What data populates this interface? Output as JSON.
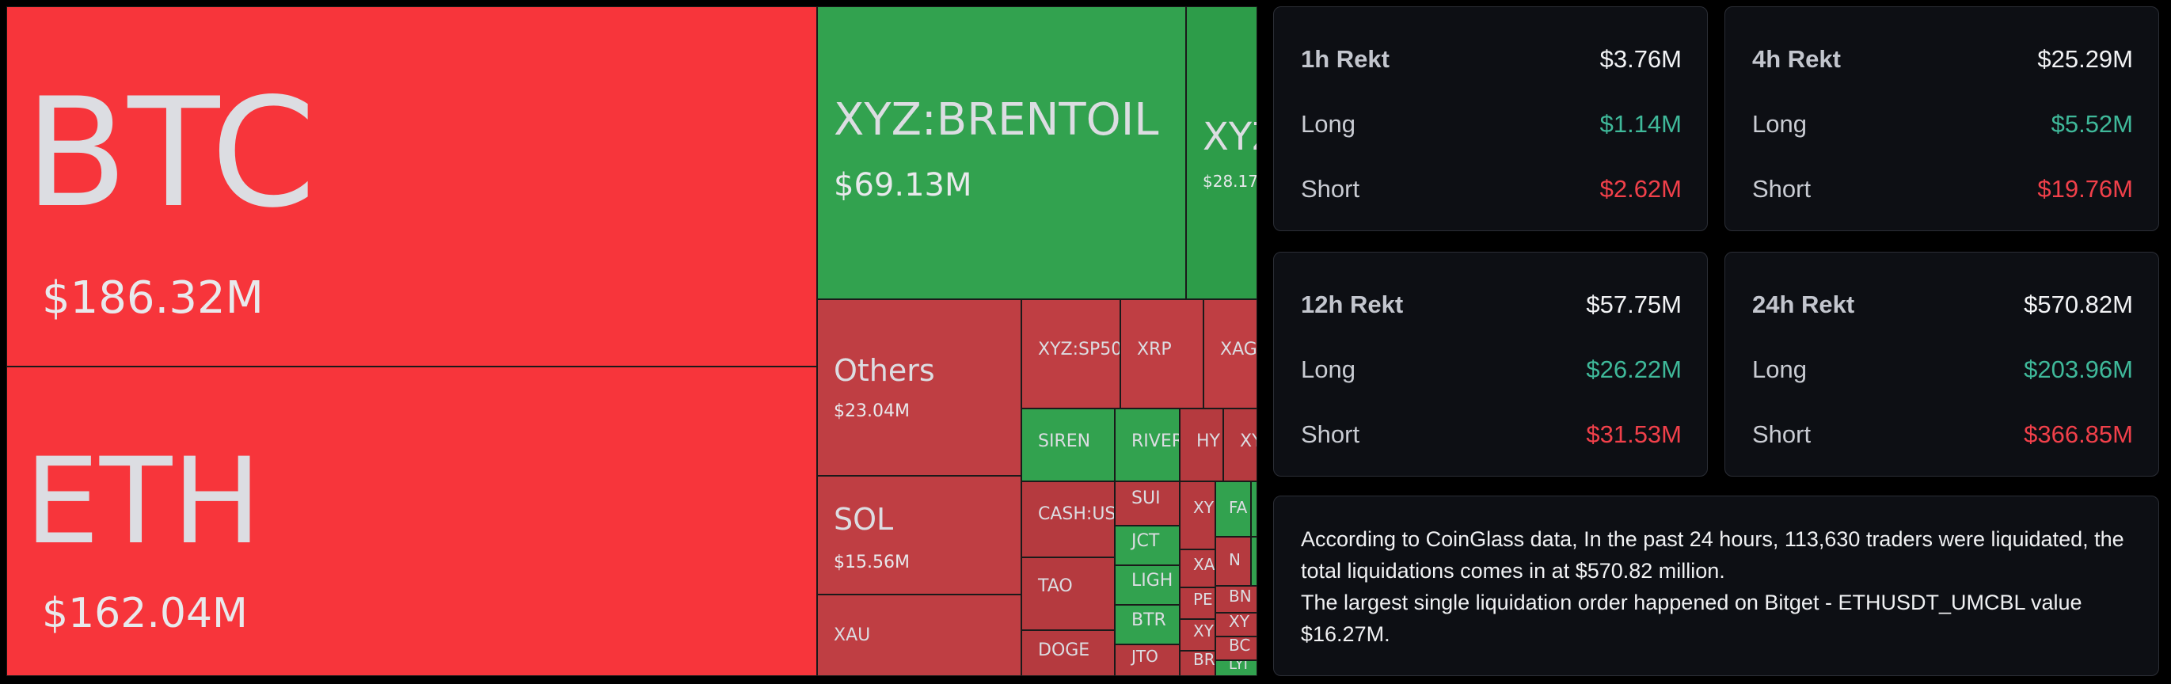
{
  "treemap": {
    "tiles": [
      {
        "symbol": "BTC",
        "value": "$186.32M",
        "color": "red1"
      },
      {
        "symbol": "ETH",
        "value": "$162.04M",
        "color": "red1"
      },
      {
        "symbol": "XYZ:BRENTOIL",
        "value": "$69.13M",
        "color": "grn"
      },
      {
        "symbol": "XYZ",
        "value": "$28.17",
        "color": "grn2"
      },
      {
        "symbol": "Others",
        "value": "$23.04M",
        "color": "red2"
      },
      {
        "symbol": "SOL",
        "value": "$15.56M",
        "color": "red2"
      },
      {
        "symbol": "XAU",
        "value": "",
        "color": "red2"
      },
      {
        "symbol": "XYZ:SP50",
        "value": "",
        "color": "red2"
      },
      {
        "symbol": "XRP",
        "value": "",
        "color": "red2"
      },
      {
        "symbol": "XAG",
        "value": "",
        "color": "red2"
      },
      {
        "symbol": "SIREN",
        "value": "",
        "color": "grn"
      },
      {
        "symbol": "RIVER",
        "value": "",
        "color": "grn"
      },
      {
        "symbol": "HY",
        "value": "",
        "color": "red3"
      },
      {
        "symbol": "XY",
        "value": "",
        "color": "red3"
      },
      {
        "symbol": "CASH:US",
        "value": "",
        "color": "red3"
      },
      {
        "symbol": "SUI",
        "value": "",
        "color": "red3"
      },
      {
        "symbol": "XY",
        "value": "",
        "color": "red3"
      },
      {
        "symbol": "FA",
        "value": "",
        "color": "grn"
      },
      {
        "symbol": "",
        "value": "",
        "color": "grn"
      },
      {
        "symbol": "JCT",
        "value": "",
        "color": "grn"
      },
      {
        "symbol": "XAU",
        "value": "",
        "color": "red3"
      },
      {
        "symbol": "N",
        "value": "",
        "color": "red3"
      },
      {
        "symbol": "",
        "value": "",
        "color": "grn"
      },
      {
        "symbol": "TAO",
        "value": "",
        "color": "red3"
      },
      {
        "symbol": "LIGH",
        "value": "",
        "color": "grn"
      },
      {
        "symbol": "PE",
        "value": "",
        "color": "red3"
      },
      {
        "symbol": "BN",
        "value": "",
        "color": "red3"
      },
      {
        "symbol": "BTR",
        "value": "",
        "color": "grn"
      },
      {
        "symbol": "XY",
        "value": "",
        "color": "red3"
      },
      {
        "symbol": "XY",
        "value": "",
        "color": "red3"
      },
      {
        "symbol": "DOGE",
        "value": "",
        "color": "red3"
      },
      {
        "symbol": "JTO",
        "value": "",
        "color": "red3"
      },
      {
        "symbol": "BC",
        "value": "",
        "color": "red3"
      },
      {
        "symbol": "BR",
        "value": "",
        "color": "red3"
      },
      {
        "symbol": "LYI",
        "value": "",
        "color": "grn"
      }
    ]
  },
  "rekt": [
    {
      "title": "1h Rekt",
      "total": "$3.76M",
      "long_label": "Long",
      "long": "$1.14M",
      "short_label": "Short",
      "short": "$2.62M"
    },
    {
      "title": "4h Rekt",
      "total": "$25.29M",
      "long_label": "Long",
      "long": "$5.52M",
      "short_label": "Short",
      "short": "$19.76M"
    },
    {
      "title": "12h Rekt",
      "total": "$57.75M",
      "long_label": "Long",
      "long": "$26.22M",
      "short_label": "Short",
      "short": "$31.53M"
    },
    {
      "title": "24h Rekt",
      "total": "$570.82M",
      "long_label": "Long",
      "long": "$203.96M",
      "short_label": "Short",
      "short": "$366.85M"
    }
  ],
  "summary": {
    "line1": "According to CoinGlass data, In the past 24 hours, 113,630 traders were liquidated, the total liquidations comes in at $570.82 million.",
    "line2": "The largest single liquidation order happened on Bitget - ETHUSDT_UMCBL value $16.27M."
  },
  "colors": {
    "long": "#3fb99a",
    "short": "#f1404a",
    "btc_eth": "#f7353b",
    "gain": "#32a24f"
  }
}
